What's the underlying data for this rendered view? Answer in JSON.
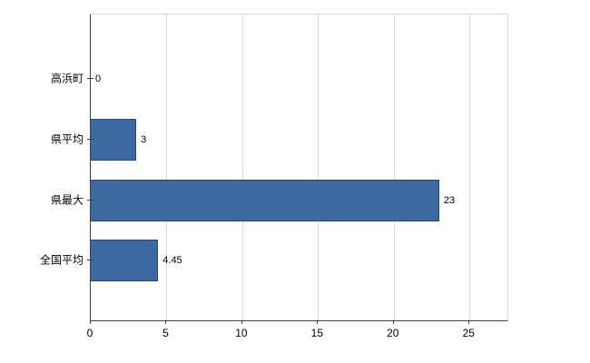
{
  "chart_data": {
    "type": "bar",
    "orientation": "horizontal",
    "title": "",
    "xlabel": "",
    "ylabel": "",
    "categories": [
      "高浜町",
      "県平均",
      "県最大",
      "全国平均"
    ],
    "values": [
      0,
      3,
      23,
      4.45
    ],
    "value_labels": [
      "0",
      "3",
      "23",
      "4.45"
    ],
    "x_ticks": [
      0,
      5,
      10,
      15,
      20,
      25
    ],
    "x_tick_labels": [
      "0",
      "5",
      "10",
      "15",
      "20",
      "25"
    ],
    "xlim": [
      0,
      27.5
    ],
    "grid": true,
    "legend": "none",
    "colors": {
      "bar_fill": "#3B69A0",
      "bar_border": "#27496E",
      "gridline": "#d9d9d9",
      "axis": "#404040",
      "text": "#000000",
      "background": "#ffffff"
    }
  }
}
